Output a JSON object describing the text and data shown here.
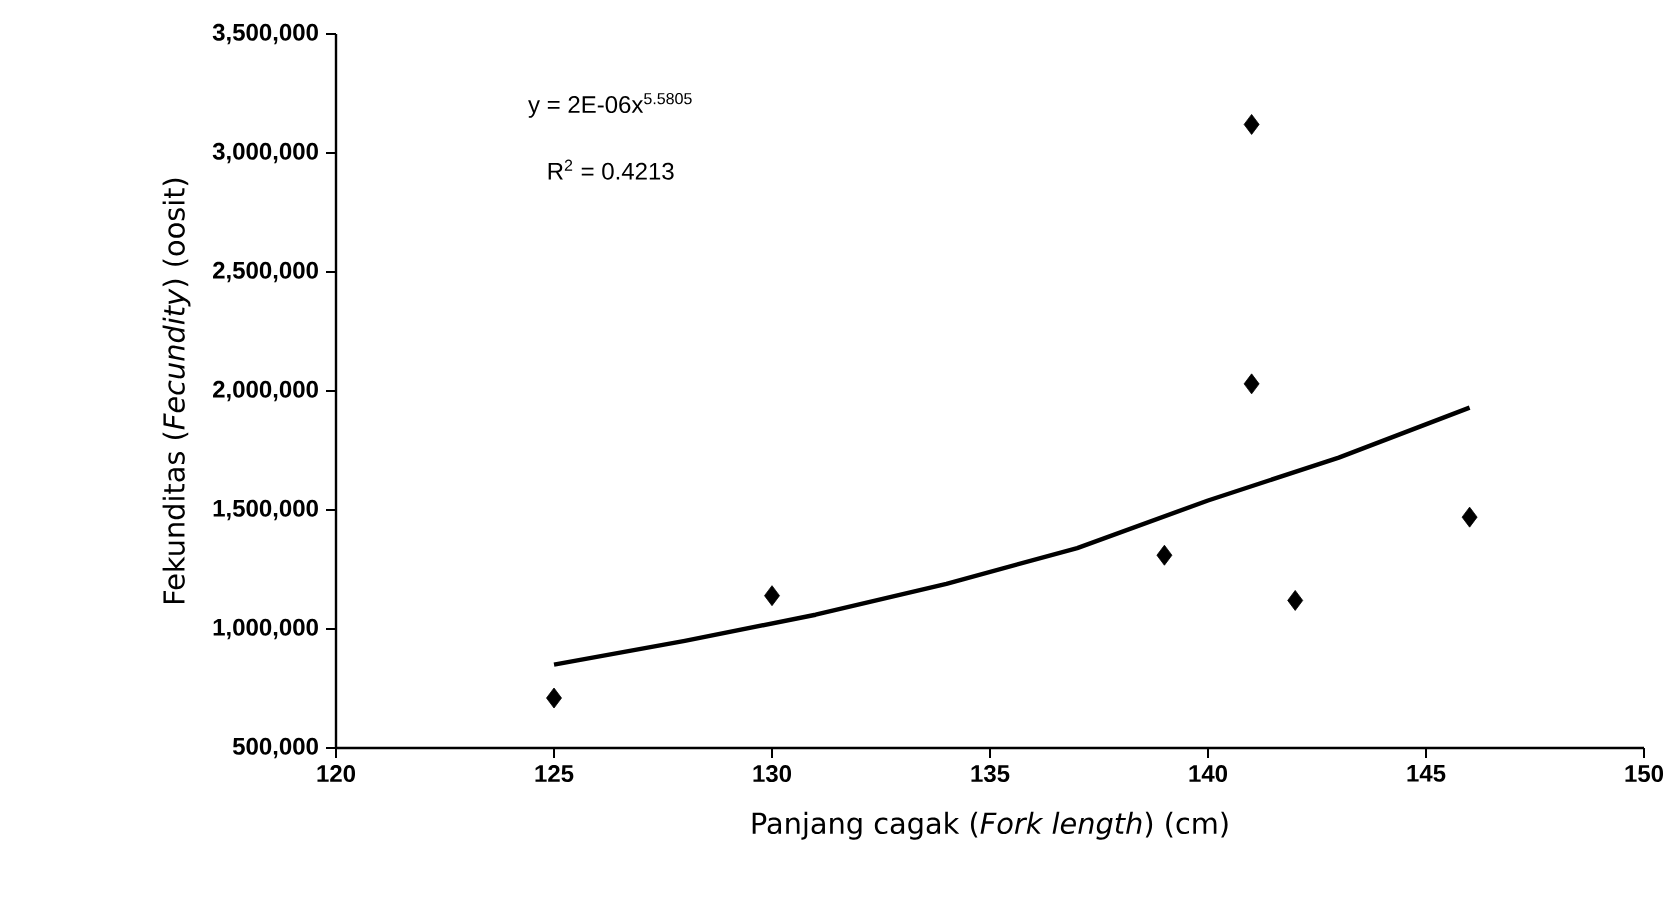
{
  "chart_data": {
    "type": "scatter",
    "xlabel": "Panjang cagak (*Fork length*) (cm)",
    "ylabel": "Fekunditas (*Fecundity*) (oosit)",
    "annotations": [
      "y = 2E-06x$^{5.5805}$",
      "R$^{2}$ = 0.4213"
    ],
    "xlim": [
      120,
      150
    ],
    "xticks": [
      120,
      125,
      130,
      135,
      140,
      145,
      150
    ],
    "ylim": [
      500000,
      3500000
    ],
    "yticks": [
      {
        "value": 500000,
        "label": "500,000"
      },
      {
        "value": 1000000,
        "label": "1,000,000"
      },
      {
        "value": 1500000,
        "label": "1,500,000"
      },
      {
        "value": 2000000,
        "label": "2,000,000"
      },
      {
        "value": 2500000,
        "label": "2,500,000"
      },
      {
        "value": 3000000,
        "label": "3,000,000"
      },
      {
        "value": 3500000,
        "label": "3,500,000"
      }
    ],
    "series": [
      {
        "color": "#000000",
        "marker": "diamond",
        "x": [
          125,
          130,
          139,
          141,
          141,
          142,
          146
        ],
        "values": [
          710000,
          1140000,
          1310000,
          3120000,
          2030000,
          1120000,
          1470000
        ]
      },
      {
        "type": "line",
        "color": "#000000",
        "x": [
          125,
          128,
          131,
          134,
          137,
          140,
          143,
          146
        ],
        "values": [
          850000,
          950000,
          1060000,
          1190000,
          1340000,
          1540000,
          1720000,
          1930000
        ]
      }
    ]
  }
}
